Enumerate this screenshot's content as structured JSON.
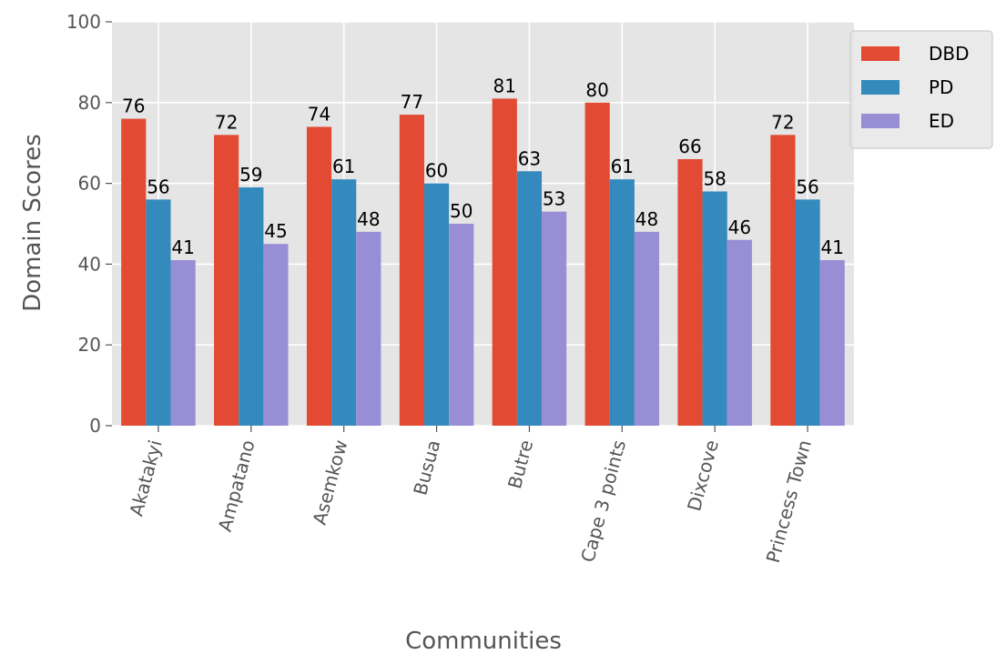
{
  "chart_data": {
    "type": "bar",
    "title": "",
    "xlabel": "Communities",
    "ylabel": "Domain Scores",
    "ylim": [
      0,
      100
    ],
    "yticks": [
      0,
      20,
      40,
      60,
      80,
      100
    ],
    "grid": true,
    "legend_position": "top-right",
    "categories": [
      "Akatakyi",
      "Ampatano",
      "Asemkow",
      "Busua",
      "Butre",
      "Cape 3 points",
      "Dixcove",
      "Princess Town"
    ],
    "series": [
      {
        "name": "DBD",
        "color": "#E24A33",
        "values": [
          76,
          72,
          74,
          77,
          81,
          80,
          66,
          72
        ]
      },
      {
        "name": "PD",
        "color": "#348ABD",
        "values": [
          56,
          59,
          61,
          60,
          63,
          61,
          58,
          56
        ]
      },
      {
        "name": "ED",
        "color": "#988ED5",
        "values": [
          41,
          45,
          48,
          50,
          53,
          48,
          46,
          41
        ]
      }
    ],
    "plot_background": "#E5E5E5",
    "grid_color": "#FFFFFF"
  }
}
